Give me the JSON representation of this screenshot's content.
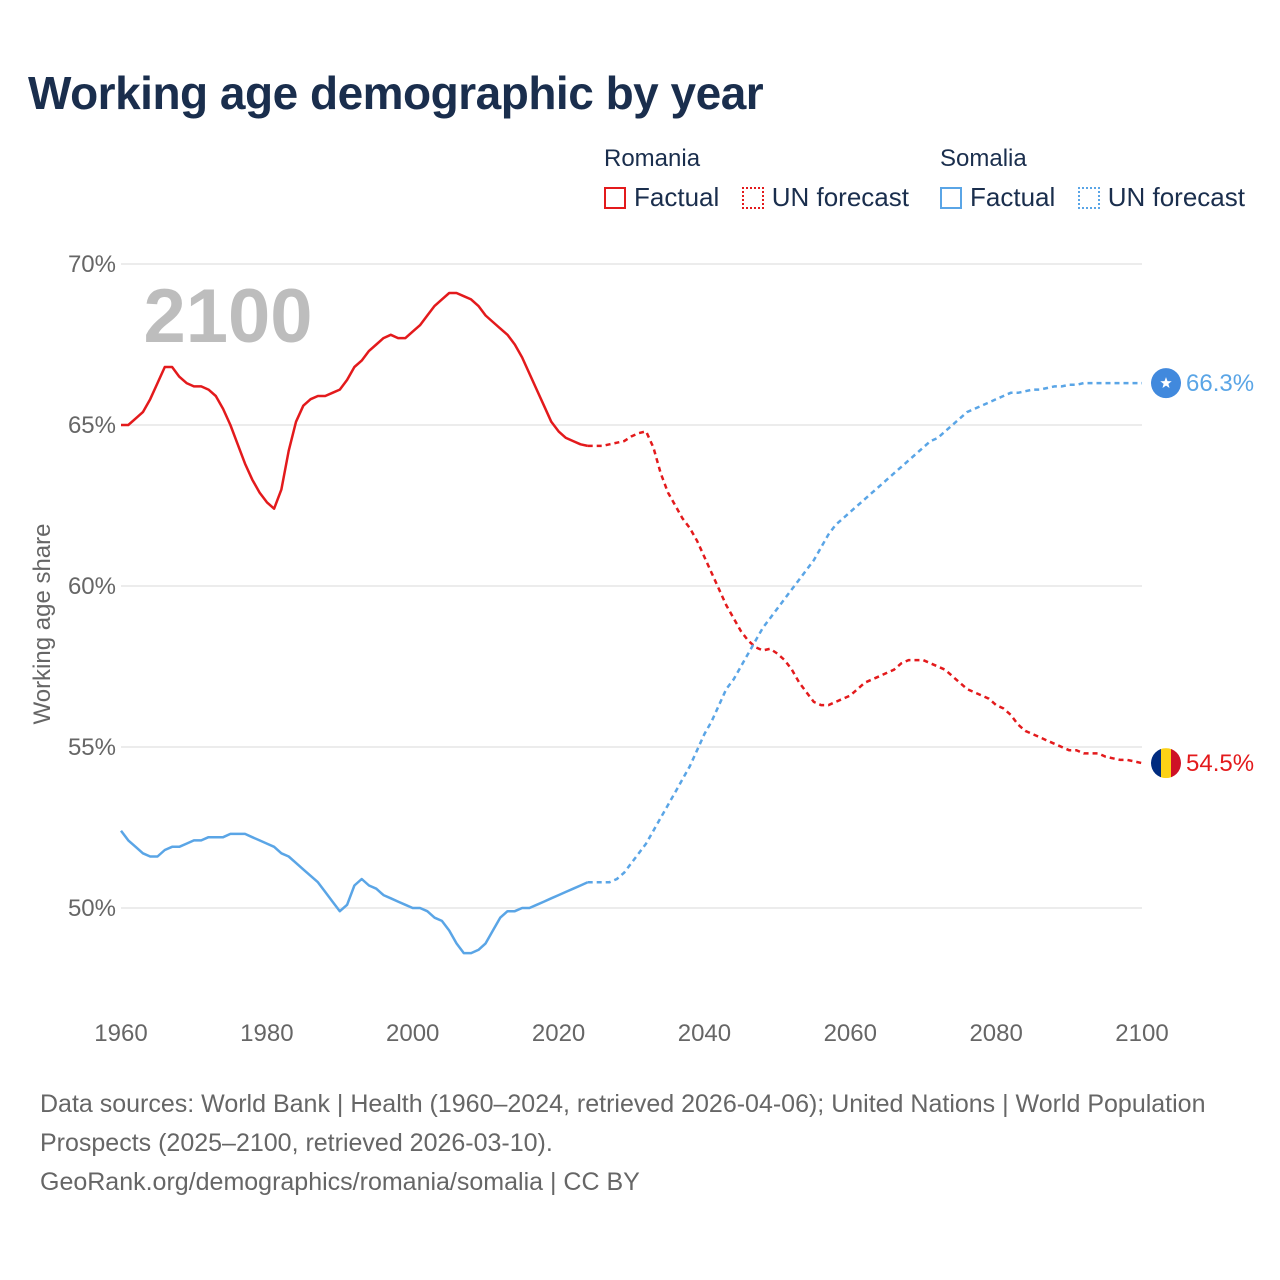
{
  "title": "Working age demographic by year",
  "legend": {
    "groups": [
      {
        "name": "Romania",
        "factual_label": "Factual",
        "forecast_label": "UN forecast",
        "color": "#e31a1c"
      },
      {
        "name": "Somalia",
        "factual_label": "Factual",
        "forecast_label": "UN forecast",
        "color": "#5aa5e6"
      }
    ]
  },
  "footer": {
    "line1": "Data sources: World Bank | Health (1960–2024, retrieved 2026-04-06); United Nations | World Population Prospects (2025–2100, retrieved 2026-03-10).",
    "line2": "GeoRank.org/demographics/romania/somalia | CC BY"
  },
  "chart_data": {
    "type": "line",
    "title": "Working age demographic by year",
    "xlabel": "",
    "ylabel": "Working age share",
    "xlim": [
      1960,
      2100
    ],
    "ylim": [
      47.5,
      70
    ],
    "x_ticks": [
      1960,
      1980,
      2000,
      2020,
      2040,
      2060,
      2080,
      2100
    ],
    "y_ticks": [
      50,
      55,
      60,
      65,
      70
    ],
    "y_tick_labels": [
      "50%",
      "55%",
      "60%",
      "65%",
      "70%"
    ],
    "grid": true,
    "year_watermark": "2100",
    "factual_end_year": 2024,
    "series": [
      {
        "name": "Romania",
        "color": "#e31a1c",
        "end_label": "54.5%",
        "flag": "romania",
        "points": [
          [
            1960,
            65.0
          ],
          [
            1961,
            65.0
          ],
          [
            1962,
            65.2
          ],
          [
            1963,
            65.4
          ],
          [
            1964,
            65.8
          ],
          [
            1965,
            66.3
          ],
          [
            1966,
            66.8
          ],
          [
            1967,
            66.8
          ],
          [
            1968,
            66.5
          ],
          [
            1969,
            66.3
          ],
          [
            1970,
            66.2
          ],
          [
            1971,
            66.2
          ],
          [
            1972,
            66.1
          ],
          [
            1973,
            65.9
          ],
          [
            1974,
            65.5
          ],
          [
            1975,
            65.0
          ],
          [
            1976,
            64.4
          ],
          [
            1977,
            63.8
          ],
          [
            1978,
            63.3
          ],
          [
            1979,
            62.9
          ],
          [
            1980,
            62.6
          ],
          [
            1981,
            62.4
          ],
          [
            1982,
            63.0
          ],
          [
            1983,
            64.2
          ],
          [
            1984,
            65.1
          ],
          [
            1985,
            65.6
          ],
          [
            1986,
            65.8
          ],
          [
            1987,
            65.9
          ],
          [
            1988,
            65.9
          ],
          [
            1989,
            66.0
          ],
          [
            1990,
            66.1
          ],
          [
            1991,
            66.4
          ],
          [
            1992,
            66.8
          ],
          [
            1993,
            67.0
          ],
          [
            1994,
            67.3
          ],
          [
            1995,
            67.5
          ],
          [
            1996,
            67.7
          ],
          [
            1997,
            67.8
          ],
          [
            1998,
            67.7
          ],
          [
            1999,
            67.7
          ],
          [
            2000,
            67.9
          ],
          [
            2001,
            68.1
          ],
          [
            2002,
            68.4
          ],
          [
            2003,
            68.7
          ],
          [
            2004,
            68.9
          ],
          [
            2005,
            69.1
          ],
          [
            2006,
            69.1
          ],
          [
            2007,
            69.0
          ],
          [
            2008,
            68.9
          ],
          [
            2009,
            68.7
          ],
          [
            2010,
            68.4
          ],
          [
            2011,
            68.2
          ],
          [
            2012,
            68.0
          ],
          [
            2013,
            67.8
          ],
          [
            2014,
            67.5
          ],
          [
            2015,
            67.1
          ],
          [
            2016,
            66.6
          ],
          [
            2017,
            66.1
          ],
          [
            2018,
            65.6
          ],
          [
            2019,
            65.1
          ],
          [
            2020,
            64.8
          ],
          [
            2021,
            64.6
          ],
          [
            2022,
            64.5
          ],
          [
            2023,
            64.4
          ],
          [
            2024,
            64.35
          ],
          [
            2025,
            64.35
          ],
          [
            2026,
            64.35
          ],
          [
            2027,
            64.4
          ],
          [
            2028,
            64.45
          ],
          [
            2029,
            64.5
          ],
          [
            2030,
            64.65
          ],
          [
            2031,
            64.75
          ],
          [
            2032,
            64.8
          ],
          [
            2033,
            64.3
          ],
          [
            2034,
            63.5
          ],
          [
            2035,
            62.9
          ],
          [
            2036,
            62.5
          ],
          [
            2037,
            62.1
          ],
          [
            2038,
            61.8
          ],
          [
            2039,
            61.4
          ],
          [
            2040,
            60.9
          ],
          [
            2041,
            60.4
          ],
          [
            2042,
            59.9
          ],
          [
            2043,
            59.4
          ],
          [
            2044,
            59.0
          ],
          [
            2045,
            58.6
          ],
          [
            2046,
            58.3
          ],
          [
            2047,
            58.1
          ],
          [
            2048,
            58.0
          ],
          [
            2049,
            58.05
          ],
          [
            2050,
            57.9
          ],
          [
            2051,
            57.7
          ],
          [
            2052,
            57.4
          ],
          [
            2053,
            57.0
          ],
          [
            2054,
            56.7
          ],
          [
            2055,
            56.4
          ],
          [
            2056,
            56.3
          ],
          [
            2057,
            56.3
          ],
          [
            2058,
            56.4
          ],
          [
            2059,
            56.5
          ],
          [
            2060,
            56.6
          ],
          [
            2061,
            56.8
          ],
          [
            2062,
            57.0
          ],
          [
            2063,
            57.1
          ],
          [
            2064,
            57.2
          ],
          [
            2065,
            57.3
          ],
          [
            2066,
            57.4
          ],
          [
            2067,
            57.6
          ],
          [
            2068,
            57.7
          ],
          [
            2069,
            57.7
          ],
          [
            2070,
            57.7
          ],
          [
            2071,
            57.6
          ],
          [
            2072,
            57.5
          ],
          [
            2073,
            57.4
          ],
          [
            2074,
            57.2
          ],
          [
            2075,
            57.0
          ],
          [
            2076,
            56.8
          ],
          [
            2077,
            56.7
          ],
          [
            2078,
            56.6
          ],
          [
            2079,
            56.5
          ],
          [
            2080,
            56.3
          ],
          [
            2081,
            56.2
          ],
          [
            2082,
            56.0
          ],
          [
            2083,
            55.7
          ],
          [
            2084,
            55.5
          ],
          [
            2085,
            55.4
          ],
          [
            2086,
            55.3
          ],
          [
            2087,
            55.2
          ],
          [
            2088,
            55.1
          ],
          [
            2089,
            55.0
          ],
          [
            2090,
            54.9
          ],
          [
            2091,
            54.9
          ],
          [
            2092,
            54.8
          ],
          [
            2093,
            54.8
          ],
          [
            2094,
            54.8
          ],
          [
            2095,
            54.7
          ],
          [
            2096,
            54.65
          ],
          [
            2097,
            54.6
          ],
          [
            2098,
            54.6
          ],
          [
            2099,
            54.55
          ],
          [
            2100,
            54.5
          ]
        ]
      },
      {
        "name": "Somalia",
        "color": "#5aa5e6",
        "end_label": "66.3%",
        "flag": "somalia",
        "points": [
          [
            1960,
            52.4
          ],
          [
            1961,
            52.1
          ],
          [
            1962,
            51.9
          ],
          [
            1963,
            51.7
          ],
          [
            1964,
            51.6
          ],
          [
            1965,
            51.6
          ],
          [
            1966,
            51.8
          ],
          [
            1967,
            51.9
          ],
          [
            1968,
            51.9
          ],
          [
            1969,
            52.0
          ],
          [
            1970,
            52.1
          ],
          [
            1971,
            52.1
          ],
          [
            1972,
            52.2
          ],
          [
            1973,
            52.2
          ],
          [
            1974,
            52.2
          ],
          [
            1975,
            52.3
          ],
          [
            1976,
            52.3
          ],
          [
            1977,
            52.3
          ],
          [
            1978,
            52.2
          ],
          [
            1979,
            52.1
          ],
          [
            1980,
            52.0
          ],
          [
            1981,
            51.9
          ],
          [
            1982,
            51.7
          ],
          [
            1983,
            51.6
          ],
          [
            1984,
            51.4
          ],
          [
            1985,
            51.2
          ],
          [
            1986,
            51.0
          ],
          [
            1987,
            50.8
          ],
          [
            1988,
            50.5
          ],
          [
            1989,
            50.2
          ],
          [
            1990,
            49.9
          ],
          [
            1991,
            50.1
          ],
          [
            1992,
            50.7
          ],
          [
            1993,
            50.9
          ],
          [
            1994,
            50.7
          ],
          [
            1995,
            50.6
          ],
          [
            1996,
            50.4
          ],
          [
            1997,
            50.3
          ],
          [
            1998,
            50.2
          ],
          [
            1999,
            50.1
          ],
          [
            2000,
            50.0
          ],
          [
            2001,
            50.0
          ],
          [
            2002,
            49.9
          ],
          [
            2003,
            49.7
          ],
          [
            2004,
            49.6
          ],
          [
            2005,
            49.3
          ],
          [
            2006,
            48.9
          ],
          [
            2007,
            48.6
          ],
          [
            2008,
            48.6
          ],
          [
            2009,
            48.7
          ],
          [
            2010,
            48.9
          ],
          [
            2011,
            49.3
          ],
          [
            2012,
            49.7
          ],
          [
            2013,
            49.9
          ],
          [
            2014,
            49.9
          ],
          [
            2015,
            50.0
          ],
          [
            2016,
            50.0
          ],
          [
            2017,
            50.1
          ],
          [
            2018,
            50.2
          ],
          [
            2019,
            50.3
          ],
          [
            2020,
            50.4
          ],
          [
            2021,
            50.5
          ],
          [
            2022,
            50.6
          ],
          [
            2023,
            50.7
          ],
          [
            2024,
            50.8
          ],
          [
            2025,
            50.8
          ],
          [
            2026,
            50.8
          ],
          [
            2027,
            50.8
          ],
          [
            2028,
            50.9
          ],
          [
            2029,
            51.1
          ],
          [
            2030,
            51.4
          ],
          [
            2031,
            51.7
          ],
          [
            2032,
            52.0
          ],
          [
            2033,
            52.4
          ],
          [
            2034,
            52.8
          ],
          [
            2035,
            53.2
          ],
          [
            2036,
            53.6
          ],
          [
            2037,
            54.0
          ],
          [
            2038,
            54.4
          ],
          [
            2039,
            54.9
          ],
          [
            2040,
            55.4
          ],
          [
            2041,
            55.8
          ],
          [
            2042,
            56.3
          ],
          [
            2043,
            56.8
          ],
          [
            2044,
            57.1
          ],
          [
            2045,
            57.5
          ],
          [
            2046,
            57.9
          ],
          [
            2047,
            58.3
          ],
          [
            2048,
            58.7
          ],
          [
            2049,
            59.0
          ],
          [
            2050,
            59.3
          ],
          [
            2051,
            59.6
          ],
          [
            2052,
            59.9
          ],
          [
            2053,
            60.2
          ],
          [
            2054,
            60.5
          ],
          [
            2055,
            60.8
          ],
          [
            2056,
            61.2
          ],
          [
            2057,
            61.6
          ],
          [
            2058,
            61.9
          ],
          [
            2059,
            62.1
          ],
          [
            2060,
            62.3
          ],
          [
            2061,
            62.5
          ],
          [
            2062,
            62.7
          ],
          [
            2063,
            62.9
          ],
          [
            2064,
            63.1
          ],
          [
            2065,
            63.3
          ],
          [
            2066,
            63.5
          ],
          [
            2067,
            63.7
          ],
          [
            2068,
            63.9
          ],
          [
            2069,
            64.1
          ],
          [
            2070,
            64.3
          ],
          [
            2071,
            64.5
          ],
          [
            2072,
            64.6
          ],
          [
            2073,
            64.8
          ],
          [
            2074,
            65.0
          ],
          [
            2075,
            65.2
          ],
          [
            2076,
            65.4
          ],
          [
            2077,
            65.5
          ],
          [
            2078,
            65.6
          ],
          [
            2079,
            65.7
          ],
          [
            2080,
            65.8
          ],
          [
            2081,
            65.9
          ],
          [
            2082,
            66.0
          ],
          [
            2083,
            66.0
          ],
          [
            2084,
            66.05
          ],
          [
            2085,
            66.1
          ],
          [
            2086,
            66.1
          ],
          [
            2087,
            66.15
          ],
          [
            2088,
            66.2
          ],
          [
            2089,
            66.2
          ],
          [
            2090,
            66.25
          ],
          [
            2091,
            66.25
          ],
          [
            2092,
            66.3
          ],
          [
            2093,
            66.3
          ],
          [
            2094,
            66.3
          ],
          [
            2095,
            66.3
          ],
          [
            2096,
            66.3
          ],
          [
            2097,
            66.3
          ],
          [
            2098,
            66.3
          ],
          [
            2099,
            66.3
          ],
          [
            2100,
            66.3
          ]
        ]
      }
    ]
  }
}
